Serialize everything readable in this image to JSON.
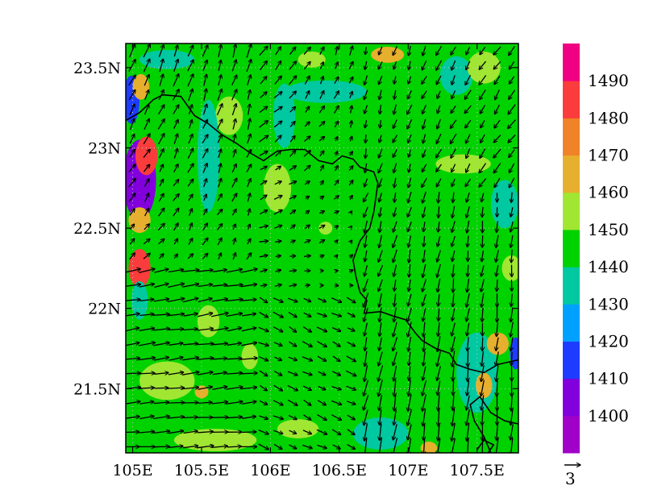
{
  "map": {
    "type": "filled-contour-with-wind-vectors",
    "lon_range": [
      104.95,
      107.8
    ],
    "lat_range": [
      21.1,
      23.65
    ],
    "lon_ticks": [
      {
        "value": 105.0,
        "label": "105E"
      },
      {
        "value": 105.5,
        "label": "105.5E"
      },
      {
        "value": 106.0,
        "label": "106E"
      },
      {
        "value": 106.5,
        "label": "106.5E"
      },
      {
        "value": 107.0,
        "label": "107E"
      },
      {
        "value": 107.5,
        "label": "107.5E"
      }
    ],
    "lat_ticks": [
      {
        "value": 23.5,
        "label": "23.5N"
      },
      {
        "value": 23.0,
        "label": "23N"
      },
      {
        "value": 22.5,
        "label": "22.5N"
      },
      {
        "value": 22.0,
        "label": "22N"
      },
      {
        "value": 21.5,
        "label": "21.5N"
      }
    ],
    "gridlines": "dotted",
    "background_level": 1445,
    "anomalies": [
      {
        "lon": 105.05,
        "lat": 22.8,
        "value": 1400,
        "rlon": 0.12,
        "rlat": 0.25
      },
      {
        "lon": 105.1,
        "lat": 22.95,
        "value": 1482,
        "rlon": 0.08,
        "rlat": 0.12
      },
      {
        "lon": 105.05,
        "lat": 22.25,
        "value": 1483,
        "rlon": 0.08,
        "rlat": 0.12
      },
      {
        "lon": 105.05,
        "lat": 22.55,
        "value": 1466,
        "rlon": 0.08,
        "rlat": 0.08
      },
      {
        "lon": 104.99,
        "lat": 23.3,
        "value": 1412,
        "rlon": 0.06,
        "rlat": 0.15
      },
      {
        "lon": 105.06,
        "lat": 23.38,
        "value": 1468,
        "rlon": 0.06,
        "rlat": 0.08
      },
      {
        "lon": 105.25,
        "lat": 23.55,
        "value": 1437,
        "rlon": 0.2,
        "rlat": 0.06
      },
      {
        "lon": 105.05,
        "lat": 22.05,
        "value": 1436,
        "rlon": 0.06,
        "rlat": 0.12
      },
      {
        "lon": 105.7,
        "lat": 23.2,
        "value": 1457,
        "rlon": 0.1,
        "rlat": 0.12
      },
      {
        "lon": 105.55,
        "lat": 22.95,
        "value": 1437,
        "rlon": 0.08,
        "rlat": 0.35
      },
      {
        "lon": 106.05,
        "lat": 22.75,
        "value": 1458,
        "rlon": 0.1,
        "rlat": 0.15
      },
      {
        "lon": 106.1,
        "lat": 23.2,
        "value": 1437,
        "rlon": 0.08,
        "rlat": 0.2
      },
      {
        "lon": 106.4,
        "lat": 23.35,
        "value": 1437,
        "rlon": 0.3,
        "rlat": 0.07
      },
      {
        "lon": 106.3,
        "lat": 23.55,
        "value": 1457,
        "rlon": 0.1,
        "rlat": 0.05
      },
      {
        "lon": 106.85,
        "lat": 23.58,
        "value": 1466,
        "rlon": 0.12,
        "rlat": 0.05
      },
      {
        "lon": 107.35,
        "lat": 23.45,
        "value": 1437,
        "rlon": 0.12,
        "rlat": 0.12
      },
      {
        "lon": 107.55,
        "lat": 23.5,
        "value": 1457,
        "rlon": 0.12,
        "rlat": 0.1
      },
      {
        "lon": 107.4,
        "lat": 22.9,
        "value": 1457,
        "rlon": 0.2,
        "rlat": 0.06
      },
      {
        "lon": 107.7,
        "lat": 22.65,
        "value": 1437,
        "rlon": 0.1,
        "rlat": 0.15
      },
      {
        "lon": 107.75,
        "lat": 22.25,
        "value": 1457,
        "rlon": 0.07,
        "rlat": 0.08
      },
      {
        "lon": 105.55,
        "lat": 21.92,
        "value": 1457,
        "rlon": 0.08,
        "rlat": 0.1
      },
      {
        "lon": 105.25,
        "lat": 21.55,
        "value": 1457,
        "rlon": 0.2,
        "rlat": 0.12
      },
      {
        "lon": 105.5,
        "lat": 21.48,
        "value": 1468,
        "rlon": 0.05,
        "rlat": 0.04
      },
      {
        "lon": 105.6,
        "lat": 21.18,
        "value": 1457,
        "rlon": 0.3,
        "rlat": 0.07
      },
      {
        "lon": 106.2,
        "lat": 21.25,
        "value": 1457,
        "rlon": 0.15,
        "rlat": 0.06
      },
      {
        "lon": 106.8,
        "lat": 21.22,
        "value": 1437,
        "rlon": 0.2,
        "rlat": 0.1
      },
      {
        "lon": 107.15,
        "lat": 21.13,
        "value": 1468,
        "rlon": 0.06,
        "rlat": 0.04
      },
      {
        "lon": 107.5,
        "lat": 21.6,
        "value": 1438,
        "rlon": 0.15,
        "rlat": 0.25
      },
      {
        "lon": 107.55,
        "lat": 21.52,
        "value": 1468,
        "rlon": 0.06,
        "rlat": 0.08
      },
      {
        "lon": 107.65,
        "lat": 21.78,
        "value": 1466,
        "rlon": 0.08,
        "rlat": 0.07
      },
      {
        "lon": 107.78,
        "lat": 21.72,
        "value": 1415,
        "rlon": 0.04,
        "rlat": 0.1
      },
      {
        "lon": 105.85,
        "lat": 21.7,
        "value": 1457,
        "rlon": 0.06,
        "rlat": 0.08
      },
      {
        "lon": 106.4,
        "lat": 22.5,
        "value": 1457,
        "rlon": 0.05,
        "rlat": 0.04
      }
    ],
    "border_line": [
      [
        104.95,
        23.17
      ],
      [
        105.05,
        23.22
      ],
      [
        105.15,
        23.3
      ],
      [
        105.22,
        23.33
      ],
      [
        105.35,
        23.32
      ],
      [
        105.45,
        23.2
      ],
      [
        105.55,
        23.15
      ],
      [
        105.65,
        23.08
      ],
      [
        105.75,
        23.03
      ],
      [
        105.85,
        22.97
      ],
      [
        105.95,
        22.92
      ],
      [
        106.05,
        22.98
      ],
      [
        106.15,
        22.99
      ],
      [
        106.25,
        22.99
      ],
      [
        106.35,
        22.92
      ],
      [
        106.45,
        22.9
      ],
      [
        106.52,
        22.95
      ],
      [
        106.6,
        22.93
      ],
      [
        106.65,
        22.88
      ],
      [
        106.75,
        22.85
      ],
      [
        106.78,
        22.78
      ],
      [
        106.75,
        22.6
      ],
      [
        106.72,
        22.5
      ],
      [
        106.65,
        22.42
      ],
      [
        106.6,
        22.3
      ],
      [
        106.62,
        22.2
      ],
      [
        106.65,
        22.1
      ],
      [
        106.7,
        22.05
      ],
      [
        106.68,
        21.97
      ],
      [
        106.8,
        21.98
      ],
      [
        106.9,
        21.95
      ],
      [
        106.98,
        21.93
      ],
      [
        107.05,
        21.85
      ],
      [
        107.1,
        21.8
      ],
      [
        107.2,
        21.75
      ],
      [
        107.3,
        21.72
      ],
      [
        107.35,
        21.65
      ],
      [
        107.45,
        21.62
      ],
      [
        107.55,
        21.6
      ],
      [
        107.65,
        21.65
      ],
      [
        107.8,
        21.68
      ]
    ],
    "coast_line": [
      [
        107.6,
        21.1
      ],
      [
        107.55,
        21.2
      ],
      [
        107.48,
        21.3
      ],
      [
        107.45,
        21.4
      ],
      [
        107.52,
        21.45
      ],
      [
        107.6,
        21.35
      ],
      [
        107.7,
        21.3
      ],
      [
        107.8,
        21.28
      ]
    ],
    "island_line": [
      [
        107.5,
        21.12
      ],
      [
        107.55,
        21.18
      ],
      [
        107.62,
        21.15
      ],
      [
        107.58,
        21.1
      ]
    ]
  },
  "colorbar": {
    "levels": [
      1400,
      1410,
      1420,
      1430,
      1440,
      1450,
      1460,
      1470,
      1480,
      1490
    ],
    "labels": [
      "1400",
      "1410",
      "1420",
      "1430",
      "1440",
      "1450",
      "1460",
      "1470",
      "1480",
      "1490"
    ],
    "colors": [
      "#a000c8",
      "#8200dc",
      "#1e3cff",
      "#00a0ff",
      "#00c8a0",
      "#00d200",
      "#a0e632",
      "#e6af2d",
      "#f08228",
      "#fa3c3c",
      "#f00082"
    ]
  },
  "vector_reference": {
    "label": "3",
    "magnitude": 3
  }
}
